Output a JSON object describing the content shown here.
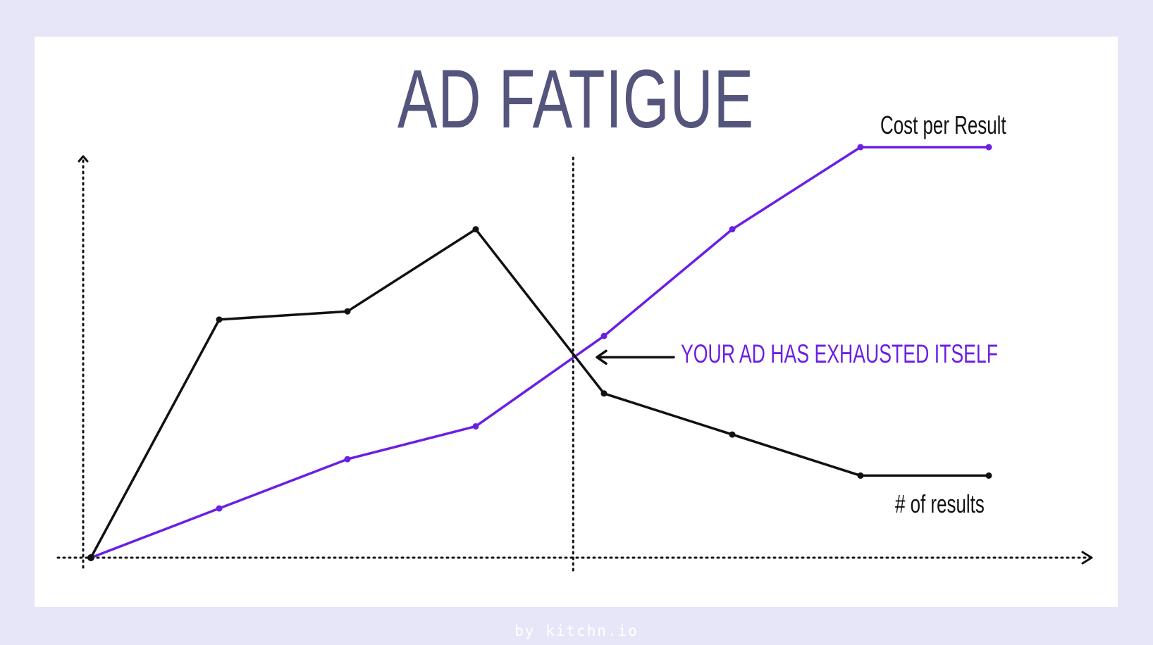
{
  "title": "AD FATIGUE",
  "footer": "by kitchn.io",
  "chart_data": {
    "type": "line",
    "title": "AD FATIGUE",
    "xlabel": "",
    "ylabel": "",
    "x": [
      0,
      1,
      2,
      3,
      4,
      5,
      6,
      7
    ],
    "xlim": [
      0,
      7.7
    ],
    "ylim": [
      0,
      4.9
    ],
    "grid": false,
    "legend": "none",
    "series": [
      {
        "name": "Cost per Result",
        "color": "#6b1fe3",
        "values": [
          0,
          0.6,
          1.2,
          1.6,
          2.7,
          4.0,
          5.0,
          5.0
        ]
      },
      {
        "name": "# of results",
        "color": "#111111",
        "values": [
          0,
          2.9,
          3.0,
          4.0,
          2.0,
          1.5,
          1.0,
          1.0
        ]
      }
    ],
    "annotations": [
      {
        "text": "YOUR AD HAS EXHAUSTED ITSELF",
        "x": 3.76,
        "y": 2.45,
        "color": "#6b1fe3"
      }
    ]
  }
}
